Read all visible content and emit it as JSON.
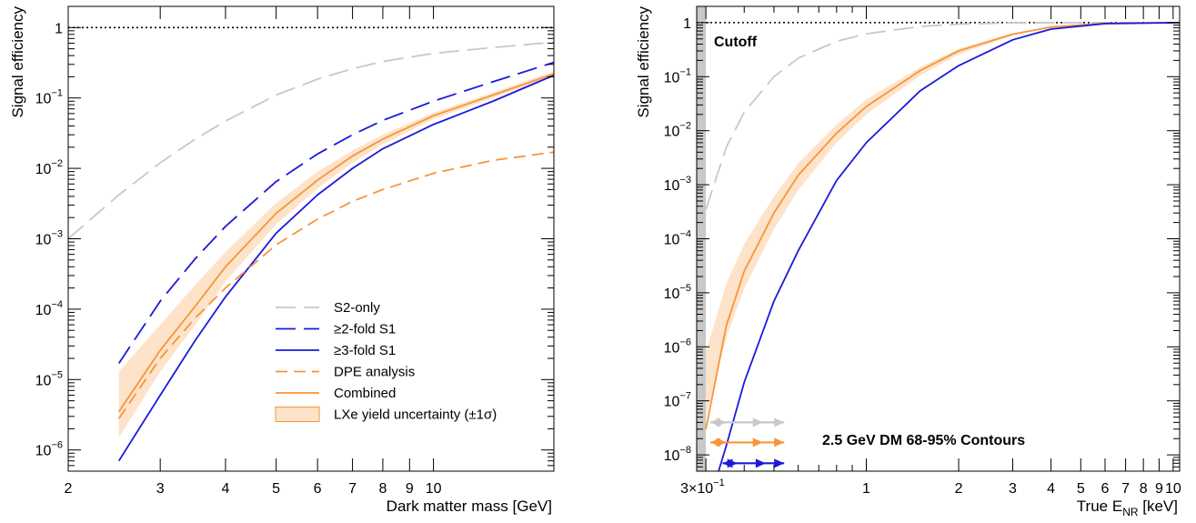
{
  "colors": {
    "s2only": "#c8c8c8",
    "twofold": "#1a1adc",
    "threefold": "#1a1adc",
    "dpe": "#f7953a",
    "combined": "#f7953a",
    "band": "#fde3c9",
    "cutoff": "#c8c8c8"
  },
  "chart_data": [
    {
      "type": "line",
      "xscale": "log",
      "yscale": "log",
      "xlabel": "Dark matter mass [GeV]",
      "ylabel": "Signal efficiency",
      "xlim": [
        2,
        17
      ],
      "ylim": [
        5e-07,
        2
      ],
      "xticks": [
        {
          "v": 2,
          "label": "2"
        },
        {
          "v": 3,
          "label": "3"
        },
        {
          "v": 4,
          "label": "4"
        },
        {
          "v": 5,
          "label": "5"
        },
        {
          "v": 6,
          "label": "6"
        },
        {
          "v": 7,
          "label": "7"
        },
        {
          "v": 8,
          "label": "8"
        },
        {
          "v": 9,
          "label": "9"
        },
        {
          "v": 10,
          "label": "10"
        }
      ],
      "yticks": [
        {
          "v": 1e-06,
          "base": "10",
          "exp": "−6"
        },
        {
          "v": 1e-05,
          "base": "10",
          "exp": "−5"
        },
        {
          "v": 0.0001,
          "base": "10",
          "exp": "−4"
        },
        {
          "v": 0.001,
          "base": "10",
          "exp": "−3"
        },
        {
          "v": 0.01,
          "base": "10",
          "exp": "−2"
        },
        {
          "v": 0.1,
          "base": "10",
          "exp": "−1"
        },
        {
          "v": 1,
          "base": "1",
          "exp": ""
        }
      ],
      "reference_line": 1,
      "legend": [
        {
          "label": "S2-only",
          "key": "s2only"
        },
        {
          "label": "≥2-fold S1",
          "key": "twofold"
        },
        {
          "label": "≥3-fold S1",
          "key": "threefold"
        },
        {
          "label": "DPE analysis",
          "key": "dpe"
        },
        {
          "label": "Combined",
          "key": "combined"
        },
        {
          "label": "LXe yield uncertainty (±1σ)",
          "key": "band"
        }
      ],
      "band": {
        "x": [
          2.5,
          3,
          3.5,
          4,
          5,
          6,
          7,
          8,
          10,
          13,
          17
        ],
        "lower": [
          1.5e-06,
          1.3e-05,
          6e-05,
          0.00025,
          0.0016,
          0.0052,
          0.012,
          0.022,
          0.05,
          0.1,
          0.2
        ],
        "upper": [
          1.3e-05,
          6e-05,
          0.00022,
          0.00065,
          0.0032,
          0.009,
          0.018,
          0.03,
          0.062,
          0.12,
          0.24
        ]
      },
      "series": [
        {
          "key": "s2only",
          "dash": "long",
          "x": [
            2,
            2.5,
            3,
            3.5,
            4,
            5,
            6,
            7,
            8,
            10,
            13,
            17
          ],
          "y": [
            0.001,
            0.0042,
            0.012,
            0.026,
            0.047,
            0.11,
            0.185,
            0.26,
            0.33,
            0.43,
            0.52,
            0.62
          ]
        },
        {
          "key": "twofold",
          "dash": "long",
          "x": [
            2.5,
            3,
            3.5,
            4,
            5,
            6,
            7,
            8,
            10,
            13,
            17
          ],
          "y": [
            1.7e-05,
            0.00013,
            0.00052,
            0.0015,
            0.0065,
            0.016,
            0.03,
            0.048,
            0.09,
            0.17,
            0.32
          ]
        },
        {
          "key": "threefold",
          "dash": "",
          "x": [
            2.5,
            3,
            3.5,
            4,
            5,
            6,
            7,
            8,
            10,
            13,
            17
          ],
          "y": [
            7e-07,
            6e-06,
            3.6e-05,
            0.00015,
            0.0012,
            0.0042,
            0.01,
            0.019,
            0.042,
            0.09,
            0.21
          ]
        },
        {
          "key": "dpe",
          "dash": "medium",
          "x": [
            2.5,
            3,
            3.5,
            4,
            5,
            6,
            7,
            8,
            10,
            13,
            17
          ],
          "y": [
            2.8e-06,
            2e-05,
            7.5e-05,
            0.0002,
            0.00082,
            0.0019,
            0.0034,
            0.005,
            0.0085,
            0.013,
            0.017
          ]
        },
        {
          "key": "combined",
          "dash": "",
          "x": [
            2.5,
            3,
            3.5,
            4,
            5,
            6,
            7,
            8,
            10,
            13,
            17
          ],
          "y": [
            3.5e-06,
            2.6e-05,
            0.00011,
            0.0004,
            0.0023,
            0.0068,
            0.015,
            0.026,
            0.056,
            0.11,
            0.22
          ]
        }
      ]
    },
    {
      "type": "line",
      "xscale": "log",
      "yscale": "log",
      "xlabel": "True E",
      "xlabel_sub": "NR",
      "xlabel_unit": " [keV]",
      "ylabel": "Signal efficiency",
      "xlim": [
        0.28,
        10.5
      ],
      "ylim": [
        5e-09,
        2
      ],
      "xticks": [
        {
          "v": 0.3,
          "label": "3×10",
          "exp": "−1"
        },
        {
          "v": 1,
          "label": "1"
        },
        {
          "v": 2,
          "label": "2"
        },
        {
          "v": 3,
          "label": "3"
        },
        {
          "v": 4,
          "label": "4"
        },
        {
          "v": 5,
          "label": "5"
        },
        {
          "v": 6,
          "label": "6"
        },
        {
          "v": 7,
          "label": "7"
        },
        {
          "v": 8,
          "label": "8"
        },
        {
          "v": 9,
          "label": "9"
        },
        {
          "v": 10,
          "label": "10"
        }
      ],
      "yticks": [
        {
          "v": 1e-08,
          "base": "10",
          "exp": "−8"
        },
        {
          "v": 1e-07,
          "base": "10",
          "exp": "−7"
        },
        {
          "v": 1e-06,
          "base": "10",
          "exp": "−6"
        },
        {
          "v": 1e-05,
          "base": "10",
          "exp": "−5"
        },
        {
          "v": 0.0001,
          "base": "10",
          "exp": "−4"
        },
        {
          "v": 0.001,
          "base": "10",
          "exp": "−3"
        },
        {
          "v": 0.01,
          "base": "10",
          "exp": "−2"
        },
        {
          "v": 0.1,
          "base": "10",
          "exp": "−1"
        },
        {
          "v": 1,
          "base": "1",
          "exp": ""
        }
      ],
      "reference_line": 1,
      "cutoff": {
        "x0": 0.28,
        "x1": 0.3,
        "label": "Cutoff"
      },
      "annotation": "2.5 GeV DM 68-95% Contours",
      "band": {
        "x": [
          0.3,
          0.35,
          0.4,
          0.5,
          0.6,
          0.8,
          1,
          1.5,
          2,
          3,
          4,
          6,
          10.5
        ],
        "lower": [
          5e-08,
          1.5e-06,
          1.2e-05,
          0.00015,
          0.0008,
          0.006,
          0.02,
          0.105,
          0.26,
          0.58,
          0.81,
          0.96,
          1
        ],
        "upper": [
          8e-07,
          1.5e-05,
          8e-05,
          0.0006,
          0.0025,
          0.013,
          0.038,
          0.15,
          0.33,
          0.64,
          0.84,
          0.97,
          1
        ]
      },
      "series": [
        {
          "key": "s2only",
          "dash": "long",
          "x": [
            0.3,
            0.35,
            0.4,
            0.5,
            0.6,
            0.8,
            1,
            1.5,
            2,
            3,
            4,
            10.5
          ],
          "y": [
            0.00035,
            0.005,
            0.022,
            0.1,
            0.22,
            0.45,
            0.62,
            0.85,
            0.94,
            0.99,
            1,
            1
          ]
        },
        {
          "key": "combined",
          "dash": "",
          "x": [
            0.3,
            0.35,
            0.4,
            0.5,
            0.6,
            0.8,
            1,
            1.5,
            2,
            3,
            4,
            6,
            10.5
          ],
          "y": [
            3e-08,
            2.5e-06,
            2.5e-05,
            0.0003,
            0.0015,
            0.009,
            0.028,
            0.13,
            0.3,
            0.61,
            0.83,
            0.97,
            1
          ]
        },
        {
          "key": "threefold",
          "dash": "",
          "x": [
            0.33,
            0.35,
            0.4,
            0.5,
            0.6,
            0.8,
            1,
            1.5,
            2,
            3,
            4,
            6,
            10.5
          ],
          "y": [
            5e-09,
            1.5e-08,
            2.2e-07,
            7e-06,
            6e-05,
            0.0012,
            0.006,
            0.055,
            0.16,
            0.48,
            0.76,
            0.96,
            1
          ]
        }
      ],
      "contours": [
        {
          "key": "s2only",
          "y": 4e-08,
          "x68": [
            0.35,
            0.46
          ],
          "x95": [
            0.31,
            0.54
          ]
        },
        {
          "key": "combined",
          "y": 1.7e-08,
          "x68": [
            0.35,
            0.46
          ],
          "x95": [
            0.31,
            0.54
          ]
        },
        {
          "key": "threefold",
          "y": 7e-09,
          "x68": [
            0.38,
            0.47
          ],
          "x95": [
            0.34,
            0.54
          ]
        }
      ]
    }
  ]
}
